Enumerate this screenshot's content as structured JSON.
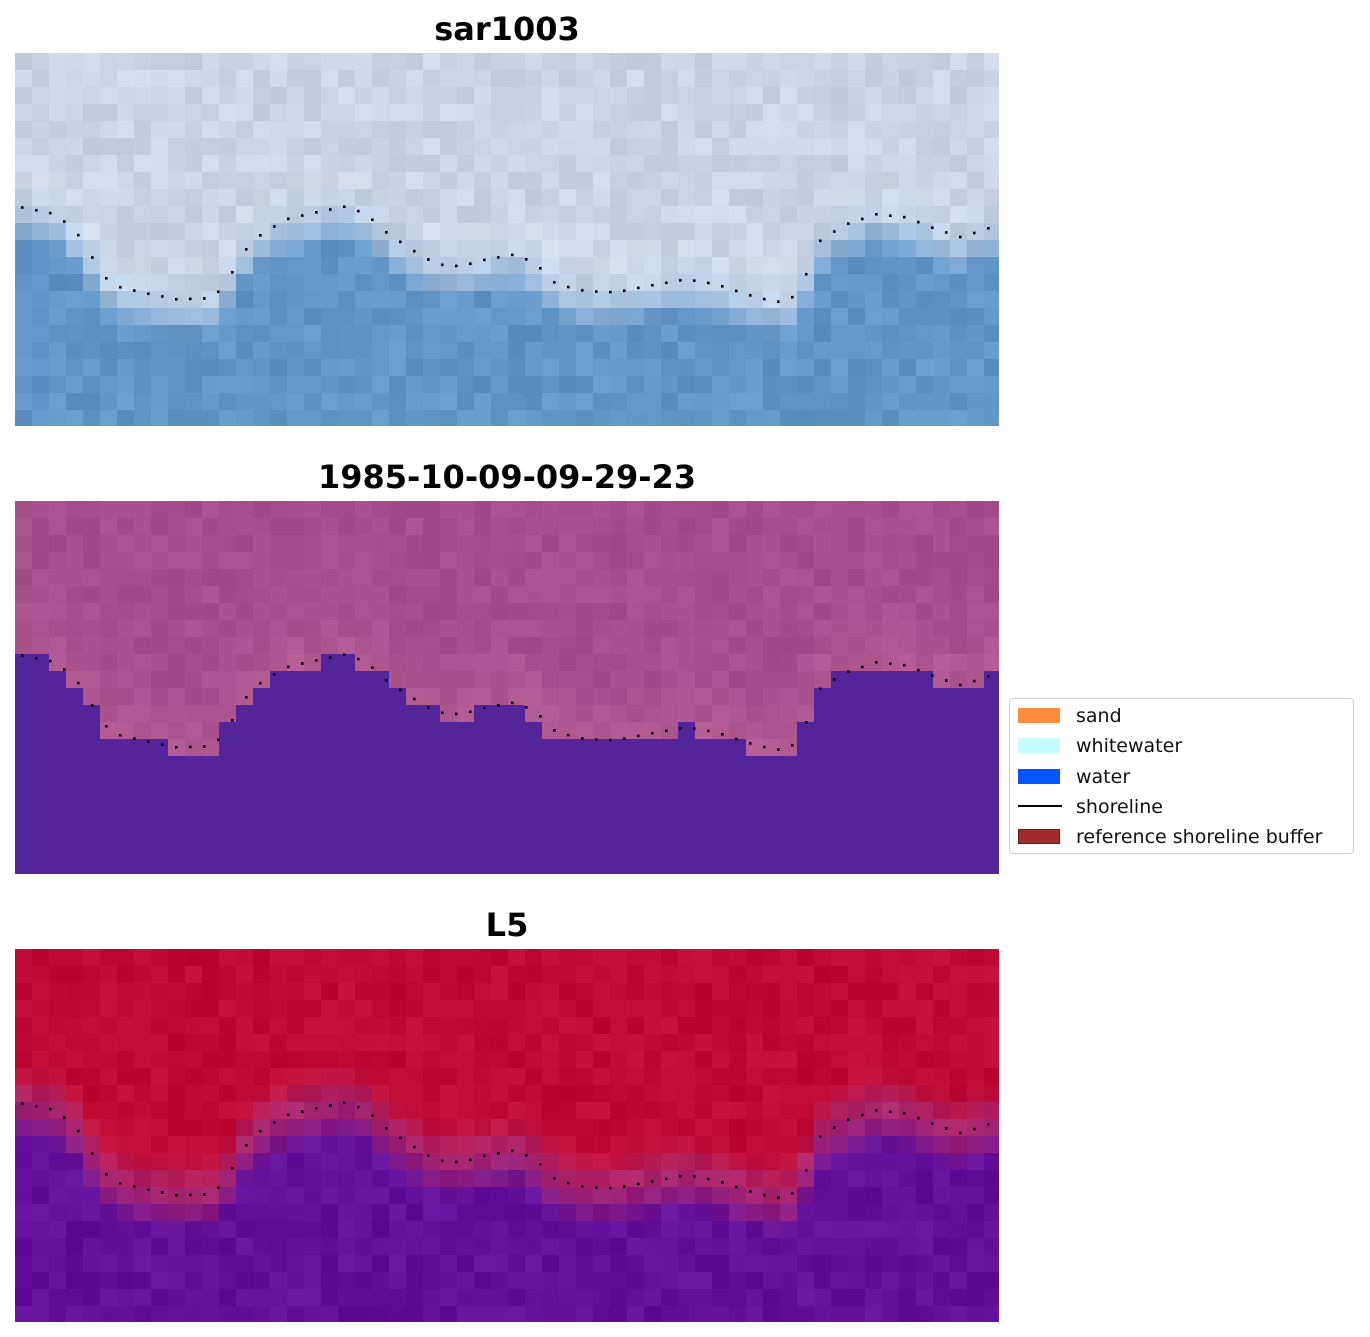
{
  "panels": [
    {
      "id": "sar",
      "title": "sar1003"
    },
    {
      "id": "date",
      "title": "1985-10-09-09-29-23"
    },
    {
      "id": "sat",
      "title": "L5"
    }
  ],
  "legend": {
    "items": [
      {
        "label": "sand",
        "color": "#ff8c3c",
        "kind": "patch"
      },
      {
        "label": "whitewater",
        "color": "#c8fcfc",
        "kind": "patch"
      },
      {
        "label": "water",
        "color": "#0055ff",
        "kind": "patch"
      },
      {
        "label": "shoreline",
        "color": "#000000",
        "kind": "line"
      },
      {
        "label": "reference shoreline buffer",
        "color": "#a02c2c",
        "kind": "patch"
      }
    ]
  },
  "colors": {
    "sar_water": "#6195c8",
    "sar_land": "#c9d4e4",
    "class_land": "#a44e8c",
    "class_water": "#53249a",
    "l5_land": "#bf0a36",
    "l5_water": "#62109b",
    "shoreline_dots": "#000000"
  }
}
